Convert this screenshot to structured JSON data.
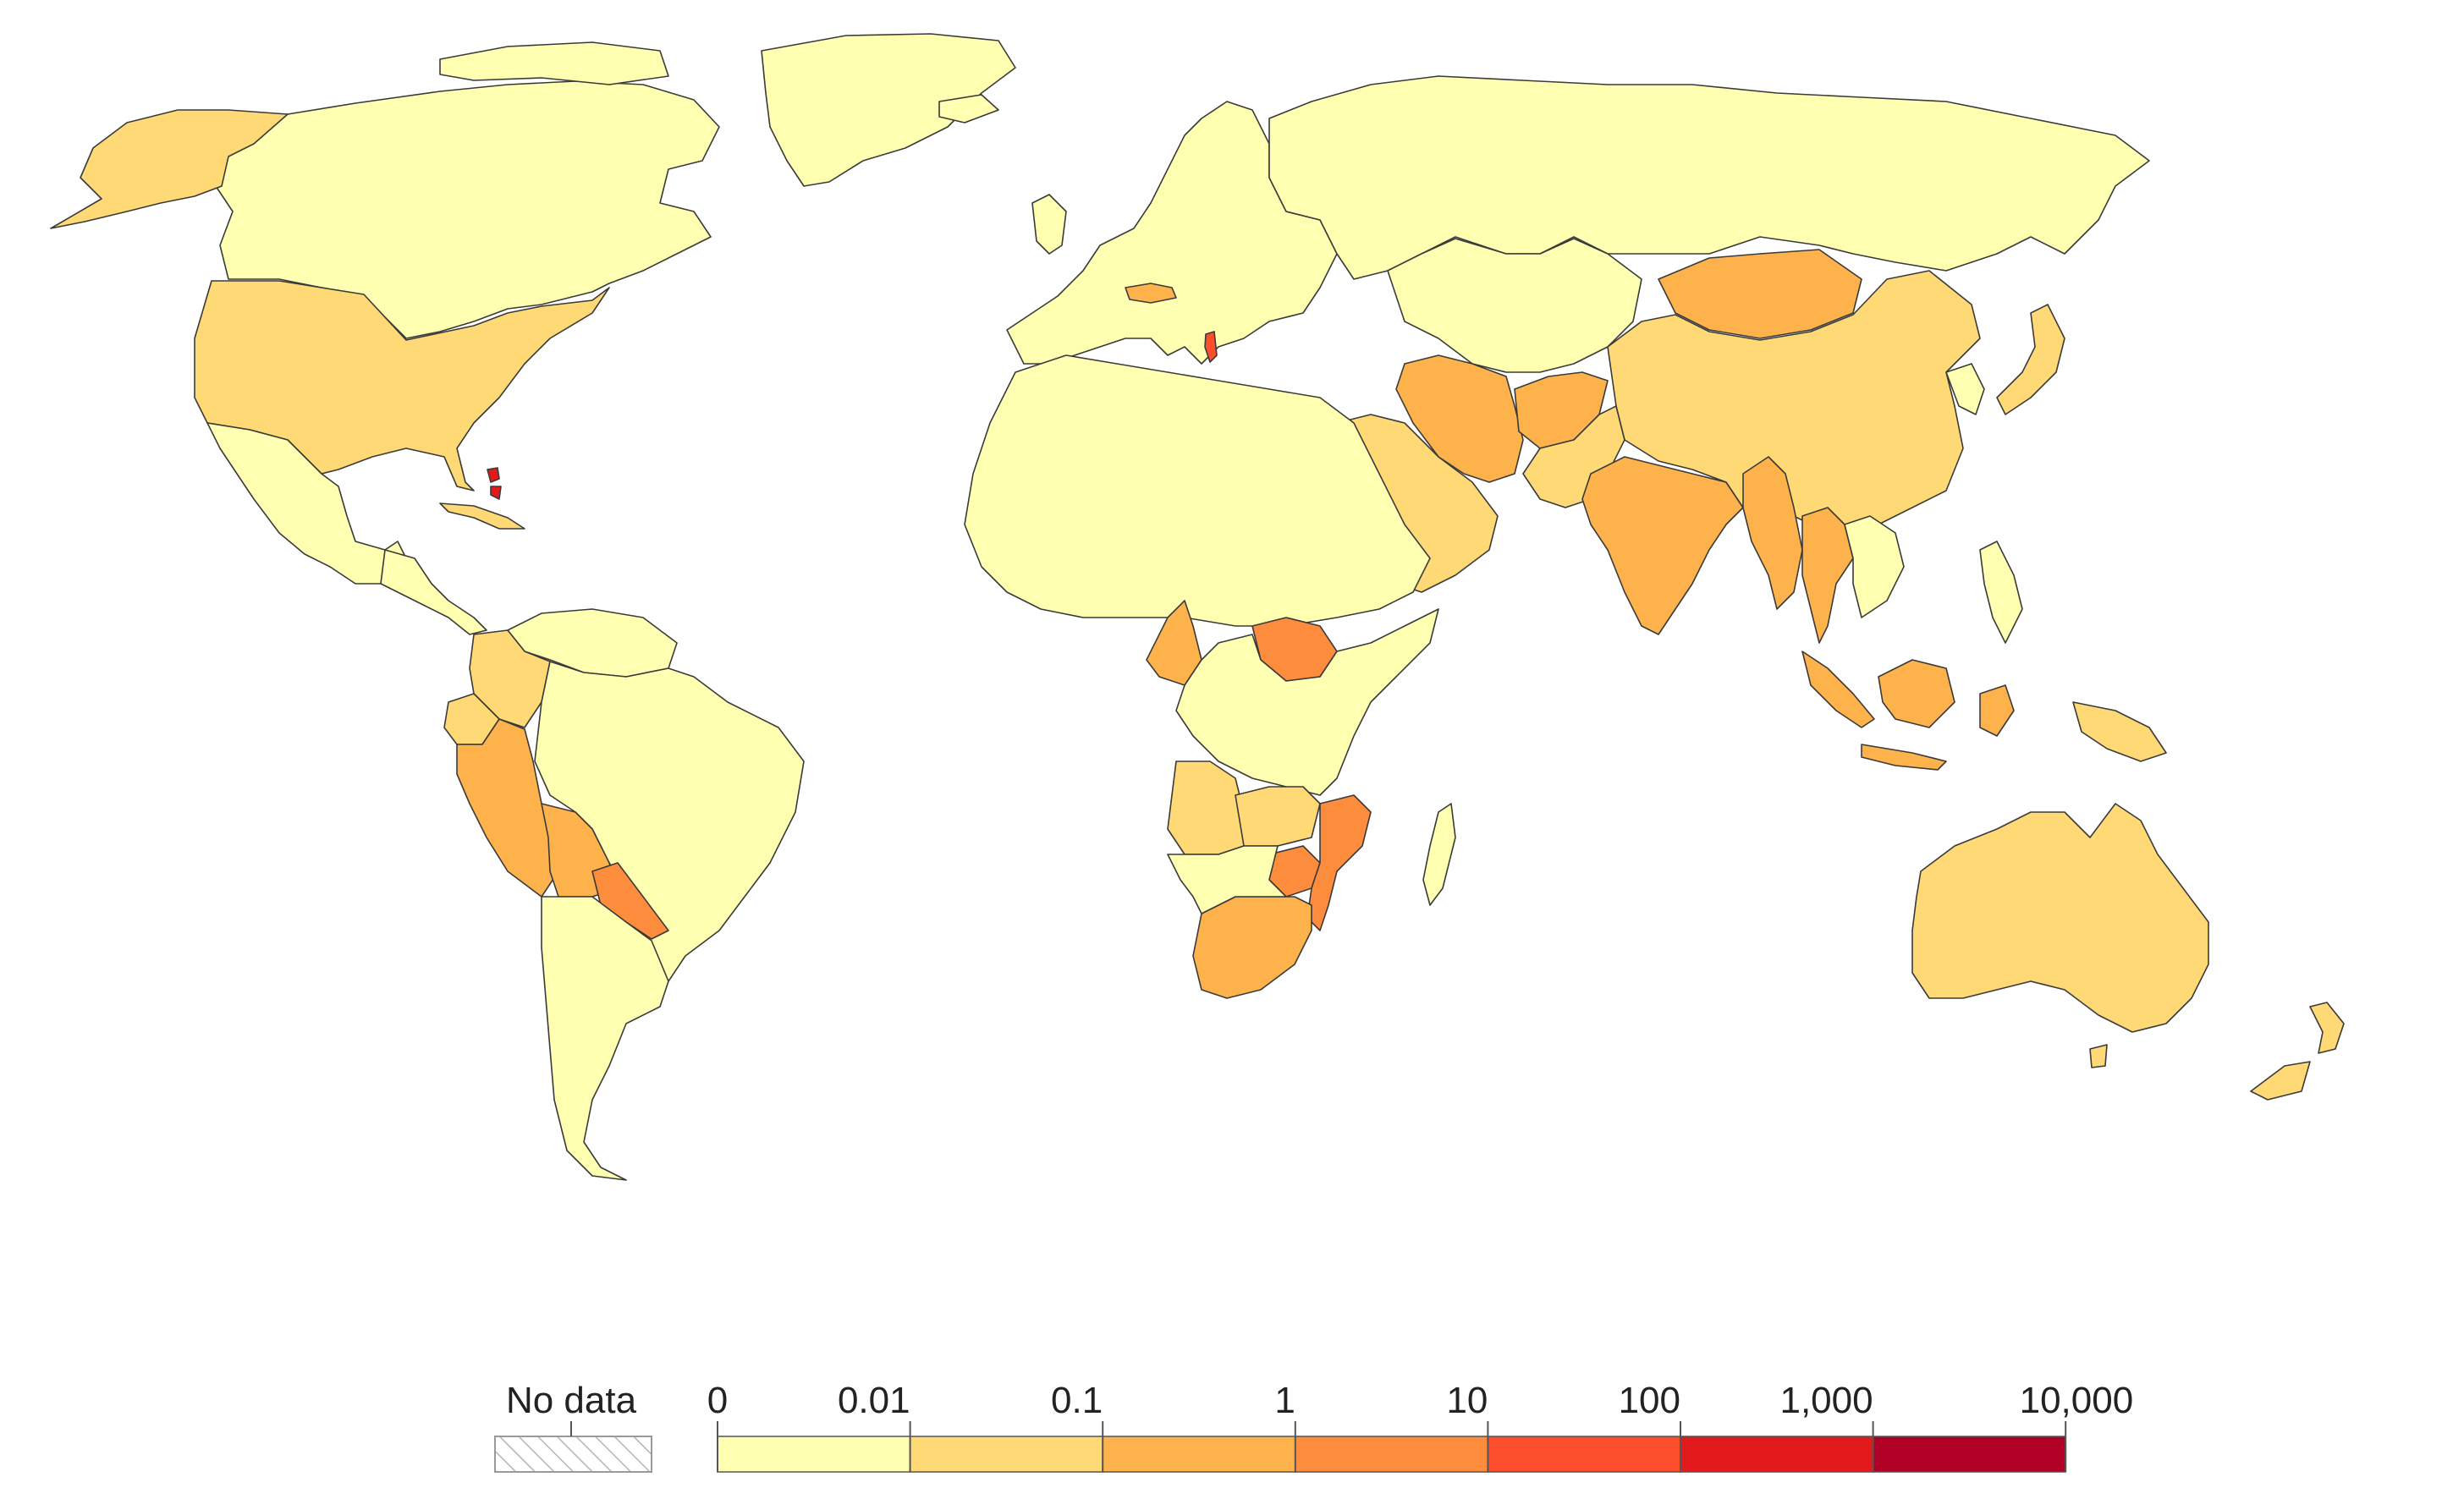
{
  "legend": {
    "no_data_label": "No data",
    "tick_labels": [
      "0",
      "0.01",
      "0.1",
      "1",
      "10",
      "100",
      "1,000",
      "10,000"
    ],
    "bins": [
      {
        "from": "0",
        "to": "0.01",
        "color": "#ffffb2"
      },
      {
        "from": "0.01",
        "to": "0.1",
        "color": "#fed976"
      },
      {
        "from": "0.1",
        "to": "1",
        "color": "#feb24c"
      },
      {
        "from": "1",
        "to": "10",
        "color": "#fd8d3c"
      },
      {
        "from": "10",
        "to": "100",
        "color": "#fc4e2a"
      },
      {
        "from": "100",
        "to": "1,000",
        "color": "#e31a1c"
      },
      {
        "from": "1,000",
        "to": "10,000",
        "color": "#b10026"
      }
    ]
  },
  "regions": [
    {
      "name": "canada",
      "bin": 0
    },
    {
      "name": "alaska",
      "bin": 1
    },
    {
      "name": "usa",
      "bin": 1
    },
    {
      "name": "mexico",
      "bin": 0
    },
    {
      "name": "greenland",
      "bin": 0
    },
    {
      "name": "cuba",
      "bin": 1
    },
    {
      "name": "bahamas",
      "bin": 5
    },
    {
      "name": "central-america",
      "bin": 0
    },
    {
      "name": "colombia",
      "bin": 1
    },
    {
      "name": "venezuela",
      "bin": 0
    },
    {
      "name": "ecuador",
      "bin": 1
    },
    {
      "name": "peru",
      "bin": 2
    },
    {
      "name": "bolivia",
      "bin": 2
    },
    {
      "name": "paraguay",
      "bin": 3
    },
    {
      "name": "brazil",
      "bin": 0
    },
    {
      "name": "chile-argentina",
      "bin": 0
    },
    {
      "name": "europe",
      "bin": 0
    },
    {
      "name": "austria",
      "bin": 2
    },
    {
      "name": "albania",
      "bin": 4
    },
    {
      "name": "russia",
      "bin": 0
    },
    {
      "name": "north-africa",
      "bin": 0
    },
    {
      "name": "cameroon",
      "bin": 2
    },
    {
      "name": "south-sudan",
      "bin": 3
    },
    {
      "name": "central-east-africa",
      "bin": 0
    },
    {
      "name": "angola",
      "bin": 1
    },
    {
      "name": "zambia",
      "bin": 1
    },
    {
      "name": "zimbabwe",
      "bin": 3
    },
    {
      "name": "mozambique",
      "bin": 3
    },
    {
      "name": "south-africa",
      "bin": 2
    },
    {
      "name": "madagascar",
      "bin": 0
    },
    {
      "name": "arabia",
      "bin": 1
    },
    {
      "name": "iran",
      "bin": 2
    },
    {
      "name": "afghanistan",
      "bin": 2
    },
    {
      "name": "pakistan",
      "bin": 1
    },
    {
      "name": "india",
      "bin": 2
    },
    {
      "name": "central-asia",
      "bin": 0
    },
    {
      "name": "china",
      "bin": 1
    },
    {
      "name": "mongolia",
      "bin": 2
    },
    {
      "name": "myanmar",
      "bin": 2
    },
    {
      "name": "thailand",
      "bin": 2
    },
    {
      "name": "indochina",
      "bin": 0
    },
    {
      "name": "japan",
      "bin": 1
    },
    {
      "name": "korea",
      "bin": 0
    },
    {
      "name": "philippines",
      "bin": 0
    },
    {
      "name": "indonesia",
      "bin": 2
    },
    {
      "name": "papua-new-guinea",
      "bin": 1
    },
    {
      "name": "australia",
      "bin": 1
    },
    {
      "name": "new-zealand",
      "bin": 1
    }
  ]
}
